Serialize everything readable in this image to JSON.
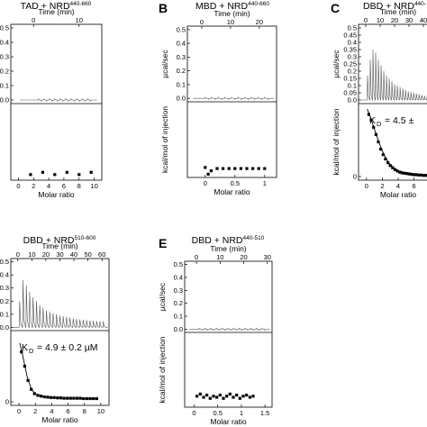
{
  "chart_data": [
    {
      "panel": "A",
      "label": "",
      "type": "line",
      "title": "TAD + NRD",
      "title_sup": "440-660",
      "top": {
        "xlabel": "Time (min)",
        "xlim": [
          -5,
          15
        ],
        "xticks": [
          0,
          10
        ],
        "ylabel": "",
        "ylim": [
          -0.025,
          0.525
        ],
        "yticks": [
          0.0,
          0.1,
          0.2,
          0.3,
          0.4,
          0.5
        ],
        "n_injections": 20,
        "baseline": 0.0,
        "peaks": []
      },
      "bottom": {
        "xlabel": "Molar ratio",
        "xlim": [
          -1,
          11
        ],
        "xticks": [
          0,
          2,
          4,
          6,
          8,
          10
        ],
        "ylabel": "",
        "ylim": [
          -0.8,
          6
        ],
        "yticks": [],
        "points": [
          [
            1.6,
            -0.3
          ],
          [
            3.2,
            -0.1
          ],
          [
            4.8,
            -0.3
          ],
          [
            6.4,
            -0.1
          ],
          [
            8.0,
            -0.3
          ],
          [
            9.6,
            -0.1
          ]
        ],
        "fit": []
      }
    },
    {
      "panel": "B",
      "label": "B",
      "type": "line",
      "title": "MBD + NRD",
      "title_sup": "440-660",
      "top": {
        "xlabel": "Time (min)",
        "xlim": [
          -5,
          26
        ],
        "xticks": [
          0,
          10,
          20
        ],
        "ylabel": "µcal/sec",
        "ylim": [
          -0.025,
          0.525
        ],
        "yticks": [
          0.0,
          0.1,
          0.2,
          0.3,
          0.4,
          0.5
        ],
        "n_injections": 20,
        "baseline": 0.0,
        "peaks": []
      },
      "bottom": {
        "xlabel": "Molar ratio",
        "xlim": [
          -0.3,
          1.2
        ],
        "xticks": [
          0,
          0.5,
          1.0
        ],
        "ylabel": "kcal/mol of injection",
        "ylim": [
          -0.8,
          6
        ],
        "yticks": [],
        "points": [
          [
            0.0,
            0.1
          ],
          [
            0.05,
            -0.5
          ],
          [
            0.1,
            -0.2
          ],
          [
            0.2,
            0.0
          ],
          [
            0.3,
            0.0
          ],
          [
            0.4,
            0.0
          ],
          [
            0.5,
            0.0
          ],
          [
            0.6,
            0.0
          ],
          [
            0.7,
            0.0
          ],
          [
            0.8,
            0.0
          ],
          [
            0.9,
            0.0
          ],
          [
            1.0,
            0.0
          ]
        ],
        "fit": []
      }
    },
    {
      "panel": "C",
      "label": "C",
      "type": "line",
      "title": "DBD + NRD",
      "title_sup": "440-",
      "top": {
        "xlabel": "Time (min)",
        "xlim": [
          -5,
          50
        ],
        "xticks": [
          0,
          10,
          20,
          30,
          40
        ],
        "ylabel": "µcal/sec",
        "ylim": [
          -0.025,
          0.525
        ],
        "yticks": [
          0.0,
          0.05,
          0.1,
          0.15,
          0.2,
          0.25,
          0.3,
          0.35,
          0.4,
          0.45,
          0.5
        ],
        "n_injections": 25,
        "baseline": 0.0,
        "peaks": [
          0.17,
          0.28,
          0.35,
          0.33,
          0.28,
          0.24,
          0.2,
          0.17,
          0.15,
          0.13,
          0.11,
          0.1,
          0.09,
          0.08,
          0.07,
          0.06,
          0.055,
          0.05,
          0.045,
          0.04,
          0.035,
          0.03,
          0.028,
          0.026,
          0.024
        ]
      },
      "bottom": {
        "xlabel": "Molar ratio",
        "xlim": [
          -1,
          9
        ],
        "xticks": [
          0,
          2,
          4,
          6,
          8
        ],
        "ylabel": "kcal/mol of injection",
        "ylim": [
          -1,
          20
        ],
        "yticks": [
          0
        ],
        "points": [
          [
            0.3,
            17
          ],
          [
            0.6,
            15.5
          ],
          [
            0.9,
            13.5
          ],
          [
            1.2,
            11.5
          ],
          [
            1.5,
            9.5
          ],
          [
            1.8,
            7.5
          ],
          [
            2.1,
            6
          ],
          [
            2.4,
            4.8
          ],
          [
            2.7,
            3.8
          ],
          [
            3.0,
            3
          ],
          [
            3.3,
            2.4
          ],
          [
            3.6,
            1.9
          ],
          [
            3.9,
            1.5
          ],
          [
            4.2,
            1.2
          ],
          [
            4.5,
            1
          ],
          [
            4.8,
            0.9
          ],
          [
            5.1,
            0.8
          ],
          [
            5.4,
            0.7
          ],
          [
            5.7,
            0.6
          ],
          [
            6.0,
            0.5
          ],
          [
            6.3,
            0.5
          ],
          [
            6.6,
            0.4
          ],
          [
            6.9,
            0.4
          ],
          [
            7.2,
            0.3
          ],
          [
            7.5,
            0.3
          ],
          [
            7.8,
            0.3
          ],
          [
            8.1,
            0.3
          ],
          [
            8.4,
            0.3
          ]
        ],
        "fit": [
          [
            0.1,
            18.5
          ],
          [
            0.5,
            16.3
          ],
          [
            1.0,
            13.0
          ],
          [
            1.5,
            9.8
          ],
          [
            2.0,
            7.0
          ],
          [
            2.5,
            4.8
          ],
          [
            3.0,
            3.3
          ],
          [
            3.5,
            2.3
          ],
          [
            4.0,
            1.6
          ],
          [
            5.0,
            0.9
          ],
          [
            6.0,
            0.6
          ],
          [
            7.0,
            0.4
          ],
          [
            8.0,
            0.3
          ],
          [
            8.6,
            0.3
          ]
        ],
        "kd_label": "K",
        "kd_sub": "D",
        "kd_value": "= 4.5 ±"
      }
    },
    {
      "panel": "D",
      "label": "",
      "type": "line",
      "title": "DBD + NRD",
      "title_sup": "510-600",
      "top": {
        "xlabel": "Time (min)",
        "xlim": [
          -5,
          65
        ],
        "xticks": [
          0,
          10,
          20,
          30,
          40,
          50,
          60
        ],
        "ylabel": "",
        "ylim": [
          -0.025,
          0.525
        ],
        "yticks": [
          0.0,
          0.1,
          0.2,
          0.3,
          0.4,
          0.5
        ],
        "n_injections": 26,
        "baseline": 0.0,
        "peaks": [
          0.2,
          0.36,
          0.32,
          0.27,
          0.23,
          0.2,
          0.17,
          0.15,
          0.13,
          0.12,
          0.11,
          0.1,
          0.09,
          0.085,
          0.08,
          0.075,
          0.07,
          0.065,
          0.06,
          0.058,
          0.055,
          0.052,
          0.05,
          0.048,
          0.046,
          0.045
        ]
      },
      "bottom": {
        "xlabel": "Molar ratio",
        "xlim": [
          -1,
          11
        ],
        "xticks": [
          0,
          2,
          4,
          6,
          8,
          10
        ],
        "ylabel": "",
        "ylim": [
          -1,
          20
        ],
        "yticks": [
          0
        ],
        "points": [
          [
            0.3,
            14
          ],
          [
            0.7,
            10
          ],
          [
            1.1,
            6
          ],
          [
            1.5,
            3.5
          ],
          [
            1.9,
            2.3
          ],
          [
            2.3,
            1.8
          ],
          [
            2.7,
            1.6
          ],
          [
            3.1,
            1.4
          ],
          [
            3.5,
            1.3
          ],
          [
            3.9,
            1.2
          ],
          [
            4.3,
            1.2
          ],
          [
            4.7,
            1.1
          ],
          [
            5.1,
            1.1
          ],
          [
            5.5,
            1.0
          ],
          [
            5.9,
            1.0
          ],
          [
            6.3,
            1.0
          ],
          [
            6.7,
            1.0
          ],
          [
            7.1,
            1.0
          ],
          [
            7.5,
            1.0
          ],
          [
            7.9,
            0.9
          ],
          [
            8.3,
            0.9
          ],
          [
            8.7,
            0.9
          ],
          [
            9.1,
            0.9
          ],
          [
            9.5,
            0.9
          ]
        ],
        "fit": [
          [
            0.1,
            16.5
          ],
          [
            0.5,
            12.5
          ],
          [
            1.0,
            7.0
          ],
          [
            1.5,
            3.6
          ],
          [
            2.0,
            2.2
          ],
          [
            2.5,
            1.7
          ],
          [
            3.0,
            1.4
          ],
          [
            4.0,
            1.2
          ],
          [
            5.0,
            1.1
          ],
          [
            6.0,
            1.0
          ],
          [
            7.0,
            1.0
          ],
          [
            8.0,
            0.9
          ],
          [
            9.6,
            0.9
          ]
        ],
        "kd_label": "K",
        "kd_sub": "D",
        "kd_value": "= 4.9 ± 0.2 µM"
      }
    },
    {
      "panel": "E",
      "label": "E",
      "type": "line",
      "title": "DBD + NRD",
      "title_sup": "440-510",
      "top": {
        "xlabel": "Time (min)",
        "xlim": [
          -5,
          32
        ],
        "xticks": [
          0,
          10,
          20,
          30
        ],
        "ylabel": "µcal/sec",
        "ylim": [
          -0.025,
          0.525
        ],
        "yticks": [
          0.0,
          0.1,
          0.2,
          0.3,
          0.4,
          0.5
        ],
        "n_injections": 24,
        "baseline": 0.0,
        "peaks": []
      },
      "bottom": {
        "xlabel": "Molar ratio",
        "xlim": [
          -0.2,
          1.65
        ],
        "xticks": [
          0,
          0.5,
          1.0,
          1.5
        ],
        "ylabel": "kcal/mol of injection",
        "ylim": [
          -0.8,
          6
        ],
        "yticks": [],
        "points": [
          [
            0.06,
            0.2
          ],
          [
            0.13,
            0.4
          ],
          [
            0.2,
            0.1
          ],
          [
            0.27,
            0.3
          ],
          [
            0.34,
            0.0
          ],
          [
            0.41,
            0.2
          ],
          [
            0.48,
            0.1
          ],
          [
            0.55,
            0.3
          ],
          [
            0.62,
            0.0
          ],
          [
            0.69,
            0.2
          ],
          [
            0.76,
            0.4
          ],
          [
            0.83,
            0.1
          ],
          [
            0.9,
            0.3
          ],
          [
            0.97,
            0.0
          ],
          [
            1.04,
            0.2
          ],
          [
            1.11,
            0.3
          ],
          [
            1.18,
            0.1
          ],
          [
            1.25,
            0.2
          ]
        ],
        "fit": []
      }
    }
  ]
}
